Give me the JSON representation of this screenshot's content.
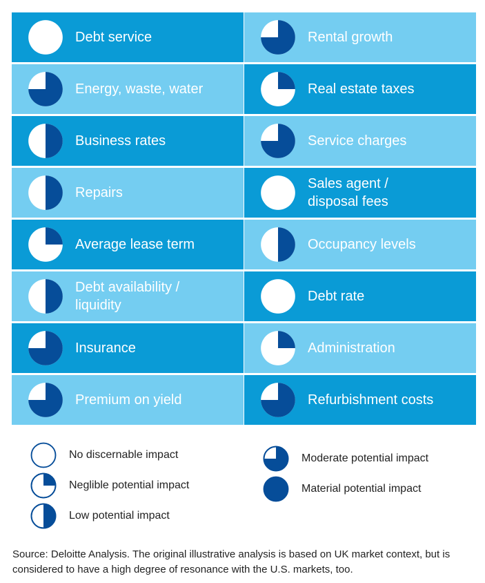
{
  "colors": {
    "dark_cell": "#0a9bd6",
    "light_cell": "#74cdf1",
    "fill_navy": "#064d99",
    "outline_navy": "#064d99",
    "text_white": "#ffffff",
    "text_dark": "#222222"
  },
  "impact_levels": {
    "none": 0,
    "negligible": 0.25,
    "low": 0.5,
    "moderate": 0.75,
    "material": 1
  },
  "grid": {
    "rows": [
      [
        {
          "label": "Debt service",
          "impact": "none",
          "shade": "dark"
        },
        {
          "label": "Rental growth",
          "impact": "moderate",
          "shade": "light"
        }
      ],
      [
        {
          "label": "Energy, waste, water",
          "impact": "moderate",
          "shade": "light"
        },
        {
          "label": "Real estate taxes",
          "impact": "negligible",
          "shade": "dark"
        }
      ],
      [
        {
          "label": "Business rates",
          "impact": "low",
          "shade": "dark"
        },
        {
          "label": "Service charges",
          "impact": "moderate",
          "shade": "light"
        }
      ],
      [
        {
          "label": "Repairs",
          "impact": "low",
          "shade": "light"
        },
        {
          "label": "Sales agent /\ndisposal fees",
          "impact": "none",
          "shade": "dark"
        }
      ],
      [
        {
          "label": "Average lease term",
          "impact": "negligible",
          "shade": "dark"
        },
        {
          "label": "Occupancy levels",
          "impact": "low",
          "shade": "light"
        }
      ],
      [
        {
          "label": "Debt availability /\nliquidity",
          "impact": "low",
          "shade": "light"
        },
        {
          "label": "Debt rate",
          "impact": "none",
          "shade": "dark"
        }
      ],
      [
        {
          "label": "Insurance",
          "impact": "moderate",
          "shade": "dark"
        },
        {
          "label": "Administration",
          "impact": "negligible",
          "shade": "light"
        }
      ],
      [
        {
          "label": "Premium on yield",
          "impact": "moderate",
          "shade": "light"
        },
        {
          "label": "Refurbishment costs",
          "impact": "moderate",
          "shade": "dark"
        }
      ]
    ]
  },
  "legend": {
    "items": [
      {
        "key": "none",
        "label": "No discernable impact"
      },
      {
        "key": "negligible",
        "label": "Neglible potential impact"
      },
      {
        "key": "low",
        "label": "Low potential impact"
      },
      {
        "key": "moderate",
        "label": "Moderate potential impact"
      },
      {
        "key": "material",
        "label": "Material potential impact"
      }
    ]
  },
  "source": "Source: Deloitte Analysis. The original illustrative analysis is based on UK market context, but is considered to have a high degree of resonance with the U.S. markets, too."
}
